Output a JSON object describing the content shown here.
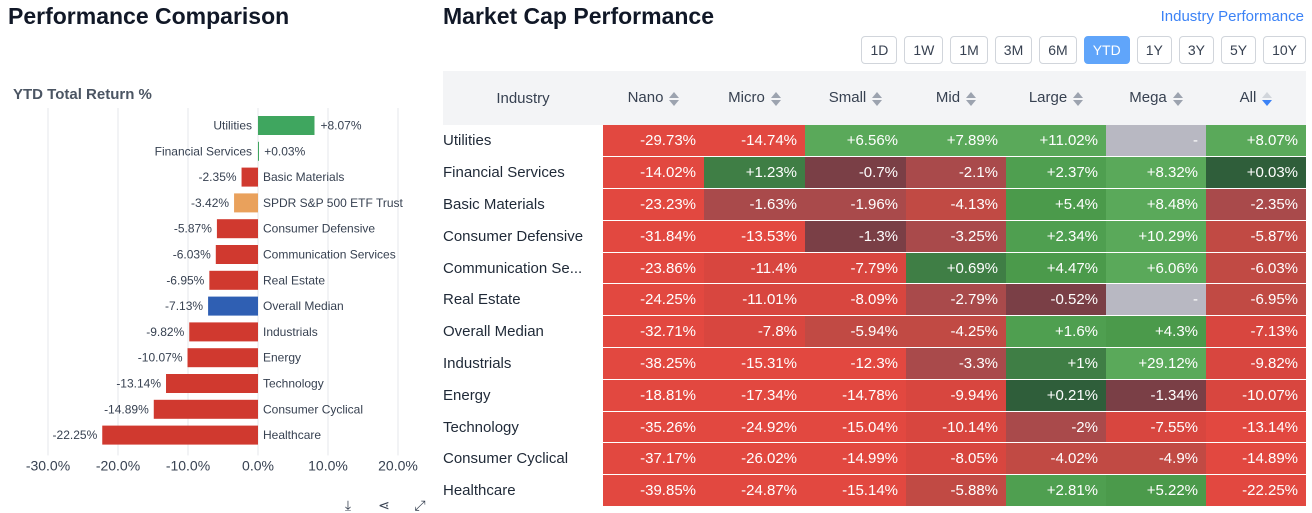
{
  "left": {
    "title": "Performance Comparison",
    "chart_title": "YTD Total Return %",
    "tools": [
      {
        "name": "download-icon",
        "glyph": "⤓"
      },
      {
        "name": "share-icon",
        "glyph": "⋖"
      },
      {
        "name": "fullscreen-icon",
        "glyph": "⤢"
      }
    ]
  },
  "right": {
    "title": "Market Cap Performance",
    "link": "Industry Performance",
    "periods": [
      "1D",
      "1W",
      "1M",
      "3M",
      "6M",
      "YTD",
      "1Y",
      "3Y",
      "5Y",
      "10Y"
    ],
    "active_period": "YTD",
    "columns": [
      "Industry",
      "Nano",
      "Micro",
      "Small",
      "Mid",
      "Large",
      "Mega",
      "All"
    ],
    "rows": [
      {
        "industry": "Utilities",
        "values": [
          "-29.73%",
          "-14.74%",
          "+6.56%",
          "+7.89%",
          "+11.02%",
          "-",
          "+8.07%"
        ]
      },
      {
        "industry": "Financial Services",
        "values": [
          "-14.02%",
          "+1.23%",
          "-0.7%",
          "-2.1%",
          "+2.37%",
          "+8.32%",
          "+0.03%"
        ]
      },
      {
        "industry": "Basic Materials",
        "values": [
          "-23.23%",
          "-1.63%",
          "-1.96%",
          "-4.13%",
          "+5.4%",
          "+8.48%",
          "-2.35%"
        ]
      },
      {
        "industry": "Consumer Defensive",
        "values": [
          "-31.84%",
          "-13.53%",
          "-1.3%",
          "-3.25%",
          "+2.34%",
          "+10.29%",
          "-5.87%"
        ]
      },
      {
        "industry": "Communication Se...",
        "values": [
          "-23.86%",
          "-11.4%",
          "-7.79%",
          "+0.69%",
          "+4.47%",
          "+6.06%",
          "-6.03%"
        ]
      },
      {
        "industry": "Real Estate",
        "values": [
          "-24.25%",
          "-11.01%",
          "-8.09%",
          "-2.79%",
          "-0.52%",
          "-",
          "-6.95%"
        ]
      },
      {
        "industry": "Overall Median",
        "values": [
          "-32.71%",
          "-7.8%",
          "-5.94%",
          "-4.25%",
          "+1.6%",
          "+4.3%",
          "-7.13%"
        ]
      },
      {
        "industry": "Industrials",
        "values": [
          "-38.25%",
          "-15.31%",
          "-12.3%",
          "-3.3%",
          "+1%",
          "+29.12%",
          "-9.82%"
        ]
      },
      {
        "industry": "Energy",
        "values": [
          "-18.81%",
          "-17.34%",
          "-14.78%",
          "-9.94%",
          "+0.21%",
          "-1.34%",
          "-10.07%"
        ]
      },
      {
        "industry": "Technology",
        "values": [
          "-35.26%",
          "-24.92%",
          "-15.04%",
          "-10.14%",
          "-2%",
          "-7.55%",
          "-13.14%"
        ]
      },
      {
        "industry": "Consumer Cyclical",
        "values": [
          "-37.17%",
          "-26.02%",
          "-14.99%",
          "-8.05%",
          "-4.02%",
          "-4.9%",
          "-14.89%"
        ]
      },
      {
        "industry": "Healthcare",
        "values": [
          "-39.85%",
          "-24.87%",
          "-15.14%",
          "-5.88%",
          "+2.81%",
          "+5.22%",
          "-22.25%"
        ]
      }
    ]
  },
  "colors": {
    "bar_positive": "#3fa65f",
    "bar_negative": "#d0392f",
    "bar_etf": "#e9a15c",
    "bar_median": "#2f5fb3",
    "active_period": "#60a5fa",
    "link": "#3b82f6",
    "missing_cell": "#b8b8c2"
  },
  "chart_data": {
    "type": "bar",
    "orientation": "horizontal",
    "title": "YTD Total Return %",
    "categories": [
      "Utilities",
      "Financial Services",
      "Basic Materials",
      "SPDR S&P 500 ETF Trust",
      "Consumer Defensive",
      "Communication Services",
      "Real Estate",
      "Overall Median",
      "Industrials",
      "Energy",
      "Technology",
      "Consumer Cyclical",
      "Healthcare"
    ],
    "values": [
      8.07,
      0.03,
      -2.35,
      -3.42,
      -5.87,
      -6.03,
      -6.95,
      -7.13,
      -9.82,
      -10.07,
      -13.14,
      -14.89,
      -22.25
    ],
    "value_labels": [
      "+8.07%",
      "+0.03%",
      "-2.35%",
      "-3.42%",
      "-5.87%",
      "-6.03%",
      "-6.95%",
      "-7.13%",
      "-9.82%",
      "-10.07%",
      "-13.14%",
      "-14.89%",
      "-22.25%"
    ],
    "x_ticks": [
      -30,
      -20,
      -10,
      0,
      10,
      20
    ],
    "x_tick_labels": [
      "-30.0%",
      "-20.0%",
      "-10.0%",
      "0.0%",
      "10.0%",
      "20.0%"
    ],
    "xlim": [
      -30,
      20
    ],
    "highlight": {
      "SPDR S&P 500 ETF Trust": "etf",
      "Overall Median": "median"
    },
    "grid": true,
    "legend": "none"
  }
}
